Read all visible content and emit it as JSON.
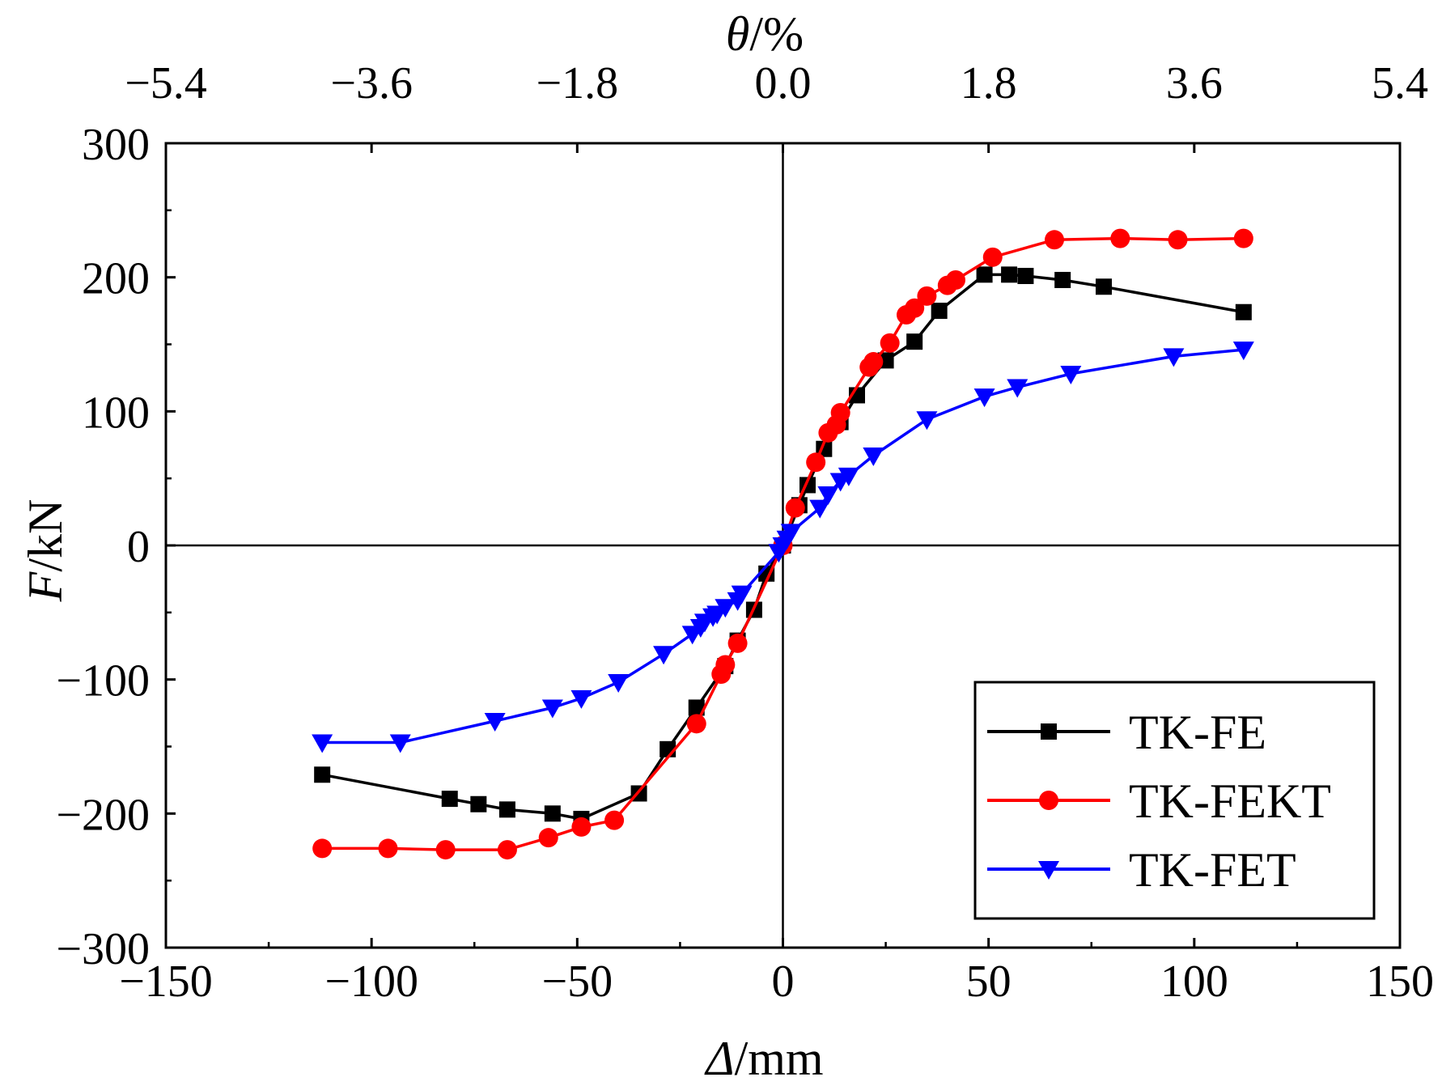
{
  "chart_data": {
    "type": "line",
    "title": "",
    "xlabel": {
      "italic": "Δ",
      "rest": "/mm"
    },
    "ylabel": {
      "italic": "F",
      "rest": "/kN"
    },
    "x2label": {
      "italic": "θ",
      "rest": "/%"
    },
    "xlim": [
      -150,
      150
    ],
    "ylim": [
      -300,
      300
    ],
    "xticks": [
      -150,
      -100,
      -50,
      0,
      50,
      100,
      150
    ],
    "xtick_labels": [
      "−150",
      "−100",
      "−50",
      "0",
      "50",
      "100",
      "150"
    ],
    "yticks": [
      -300,
      -200,
      -100,
      0,
      100,
      200,
      300
    ],
    "ytick_labels": [
      "−300",
      "−200",
      "−100",
      "0",
      "100",
      "200",
      "300"
    ],
    "x2ticks": [
      -5.4,
      -3.6,
      -1.8,
      0.0,
      1.8,
      3.6,
      5.4
    ],
    "x2tick_labels": [
      "−5.4",
      "−3.6",
      "−1.8",
      "0.0",
      "1.8",
      "3.6",
      "5.4"
    ],
    "x2_per_x": 0.036,
    "legend_position": "bottom-right",
    "grid": false,
    "series": [
      {
        "name": "TK-FE",
        "color": "#000000",
        "marker": "square",
        "x": [
          -112,
          -81,
          -74,
          -67,
          -56,
          -49,
          -35,
          -28,
          -21,
          -14,
          -11,
          -7,
          -4,
          0,
          4,
          6,
          10,
          14,
          18,
          25,
          32,
          38,
          49,
          55,
          59,
          68,
          78,
          112
        ],
        "y": [
          -171,
          -189,
          -193,
          -197,
          -200,
          -204,
          -185,
          -152,
          -121,
          -90,
          -71,
          -48,
          -21,
          0,
          30,
          45,
          72,
          92,
          112,
          138,
          152,
          175,
          202,
          202,
          201,
          198,
          193,
          174
        ]
      },
      {
        "name": "TK-FEKT",
        "color": "#ff0000",
        "marker": "circle",
        "x": [
          -112,
          -96,
          -82,
          -67,
          -57,
          -49,
          -41,
          -21,
          -15,
          -14,
          -11,
          0,
          3,
          8,
          11,
          13,
          14,
          21,
          22,
          26,
          30,
          32,
          35,
          40,
          42,
          51,
          66,
          82,
          96,
          112
        ],
        "y": [
          -226,
          -226,
          -227,
          -227,
          -218,
          -210,
          -205,
          -133,
          -96,
          -89,
          -73,
          0,
          28,
          62,
          84,
          90,
          99,
          133,
          137,
          151,
          172,
          177,
          186,
          194,
          198,
          215,
          228,
          229,
          228,
          229
        ]
      },
      {
        "name": "TK-FET",
        "color": "#0000ff",
        "marker": "triangle-down",
        "x": [
          -112,
          -93,
          -70,
          -56,
          -49,
          -40,
          -29,
          -22,
          -20,
          -19,
          -17,
          -16,
          -14,
          -11,
          -10,
          -1,
          0,
          1,
          2,
          9,
          11,
          14,
          16,
          22,
          35,
          49,
          57,
          70,
          95,
          112
        ],
        "y": [
          -147,
          -147,
          -131,
          -121,
          -114,
          -102,
          -81,
          -66,
          -61,
          -57,
          -53,
          -51,
          -46,
          -41,
          -36,
          -5,
          0,
          5,
          10,
          28,
          38,
          48,
          52,
          67,
          94,
          111,
          118,
          128,
          141,
          146
        ]
      }
    ]
  }
}
